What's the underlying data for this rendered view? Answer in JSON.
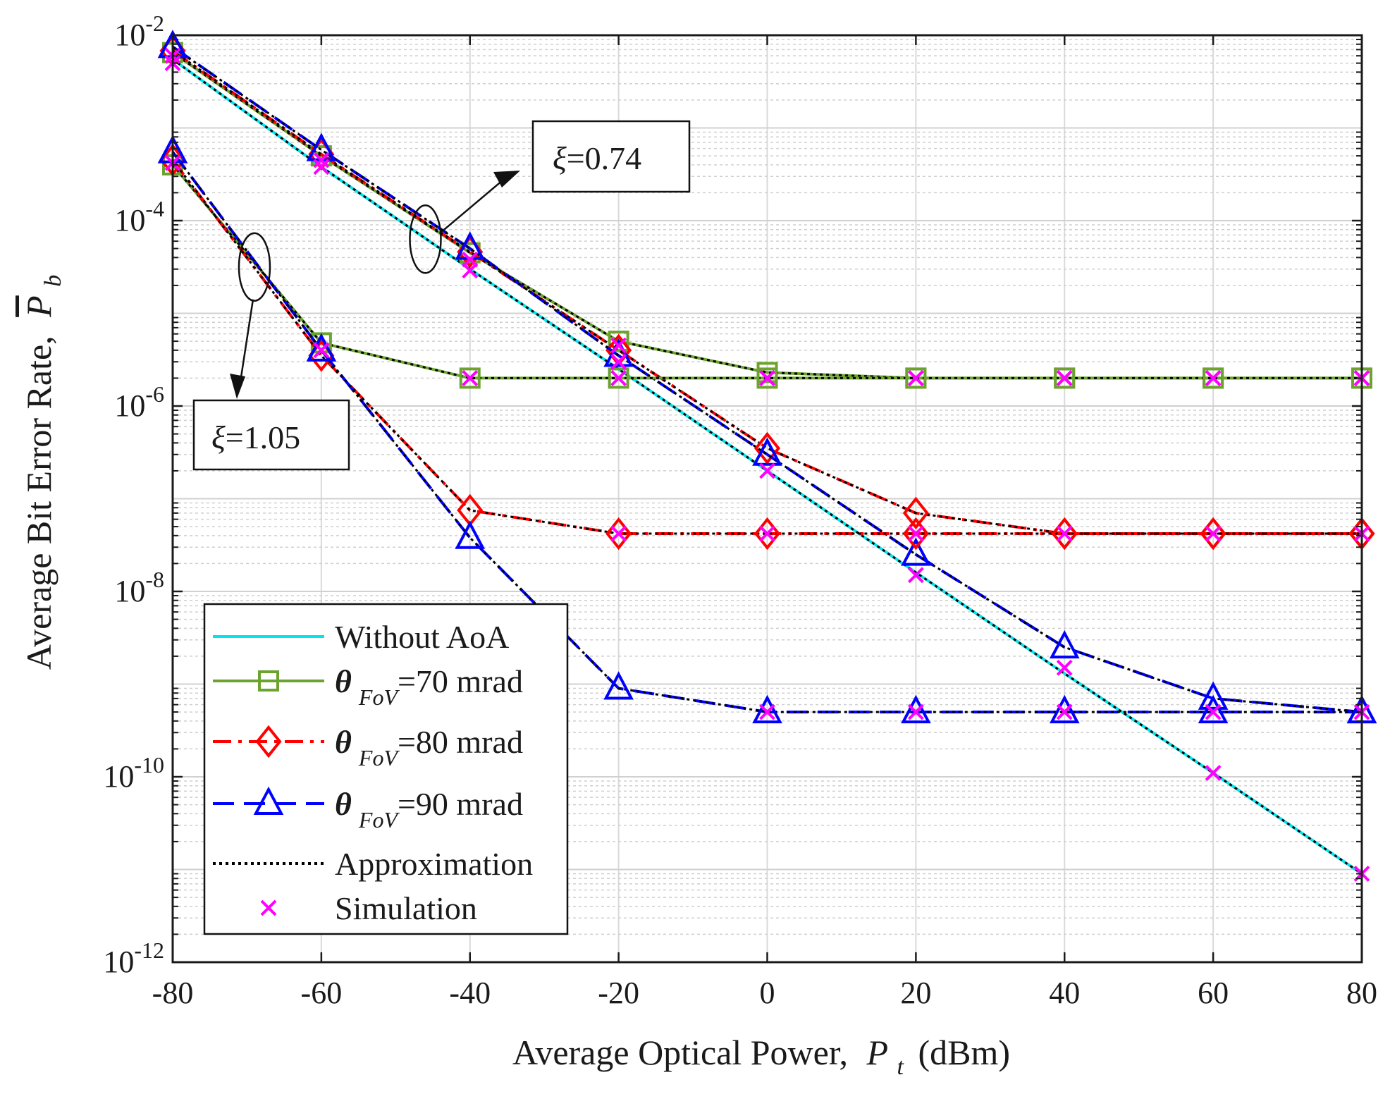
{
  "chart_data": {
    "type": "line",
    "yscale": "log",
    "xlabel": "Average Optical Power,",
    "xlabel_var": "P",
    "xlabel_sub": "t",
    "xlabel_unit": "(dBm)",
    "ylabel": "Average Bit Error Rate,",
    "ylabel_var": "P",
    "ylabel_sub": "b",
    "xlim": [
      -80,
      80
    ],
    "ylim_exp": [
      -12,
      -2
    ],
    "x_ticks": [
      "-80",
      "-60",
      "-40",
      "-20",
      "0",
      "20",
      "40",
      "60",
      "80"
    ],
    "y_tick_base": "10",
    "y_tick_exps": [
      "-12",
      "-10",
      "-8",
      "-6",
      "-4",
      "-2"
    ],
    "grid": true,
    "x": [
      -80,
      -60,
      -40,
      -20,
      0,
      20,
      40,
      60,
      80
    ],
    "colors": {
      "without_aoa": "#00e5ee",
      "fov70": "#6ba32e",
      "fov80": "#ff0000",
      "fov90": "#0000ff",
      "approximation": "#000000",
      "simulation": "#ff00ff"
    },
    "series": [
      {
        "name": "Without AoA",
        "group": "xi=0.74",
        "style": "solid",
        "color": "#00e5ee",
        "marker": "none",
        "values": [
          0.0055,
          0.00038,
          3e-05,
          2.5e-06,
          2e-07,
          1.6e-08,
          1.3e-09,
          1.1e-10,
          9e-12
        ]
      },
      {
        "name": "θ FoV=70 mrad",
        "group": "xi=0.74",
        "style": "solid",
        "color": "#6ba32e",
        "marker": "square",
        "values": [
          0.0065,
          0.0005,
          4.5e-05,
          5e-06,
          2.3e-06,
          2e-06,
          2e-06,
          2e-06,
          2e-06
        ]
      },
      {
        "name": "θ FoV=80 mrad",
        "group": "xi=0.74",
        "style": "dashdot",
        "color": "#ff0000",
        "marker": "diamond",
        "values": [
          0.0068,
          0.00052,
          4.6e-05,
          4e-06,
          3.5e-07,
          7e-08,
          4.2e-08,
          4.2e-08,
          4.2e-08
        ]
      },
      {
        "name": "θ FoV=90 mrad",
        "group": "xi=0.74",
        "style": "dashed",
        "color": "#0000ff",
        "marker": "triangle",
        "values": [
          0.0075,
          0.00058,
          5e-05,
          3.5e-06,
          3e-07,
          2.5e-08,
          2.5e-09,
          7e-10,
          5e-10
        ]
      },
      {
        "name": "θ FoV=70 mrad",
        "group": "xi=1.05",
        "style": "solid",
        "color": "#6ba32e",
        "marker": "square",
        "values": [
          0.0004,
          4.8e-06,
          2e-06,
          2e-06,
          2e-06,
          2e-06,
          2e-06,
          2e-06,
          2e-06
        ]
      },
      {
        "name": "θ FoV=80 mrad",
        "group": "xi=1.05",
        "style": "dashdot",
        "color": "#ff0000",
        "marker": "diamond",
        "values": [
          0.00045,
          3.5e-06,
          7.5e-08,
          4.2e-08,
          4.2e-08,
          4.2e-08,
          4.2e-08,
          4.2e-08,
          4.2e-08
        ]
      },
      {
        "name": "θ FoV=90 mrad",
        "group": "xi=1.05",
        "style": "dashed",
        "color": "#0000ff",
        "marker": "triangle",
        "values": [
          0.00055,
          4e-06,
          3.8e-08,
          9e-10,
          5e-10,
          5e-10,
          5e-10,
          5e-10,
          5e-10
        ]
      },
      {
        "name": "Simulation",
        "group": "xi=0.74",
        "style": "none",
        "color": "#ff00ff",
        "marker": "x",
        "values": [
          0.005,
          0.00038,
          2.9e-05,
          3e-06,
          2e-07,
          1.5e-08,
          1.5e-09,
          1.1e-10,
          9e-12
        ]
      },
      {
        "name": "Simulation",
        "group": "xi=0.74",
        "style": "none",
        "color": "#ff00ff",
        "marker": "x",
        "values": [
          0.006,
          0.00045,
          3.8e-05,
          4.5e-06,
          2e-06,
          2e-06,
          2e-06,
          2e-06,
          2e-06
        ]
      },
      {
        "name": "Simulation",
        "group": "xi=1.05",
        "style": "none",
        "color": "#ff00ff",
        "marker": "x",
        "values": [
          0.00042,
          4e-06,
          2e-06,
          2e-06,
          2e-06,
          2e-06,
          2e-06,
          2e-06,
          2e-06
        ]
      },
      {
        "name": "Simulation",
        "group": "xi=1.05",
        "style": "none",
        "color": "#ff00ff",
        "marker": "x",
        "values": [
          null,
          null,
          null,
          4.2e-08,
          4.2e-08,
          4.2e-08,
          4.2e-08,
          4.2e-08,
          4.2e-08
        ]
      },
      {
        "name": "Simulation",
        "group": "xi=1.05",
        "style": "none",
        "color": "#ff00ff",
        "marker": "x",
        "values": [
          null,
          null,
          null,
          null,
          5e-10,
          5e-10,
          5e-10,
          5e-10,
          5e-10
        ]
      }
    ],
    "legend": {
      "placement": "bottom-left",
      "entries": [
        {
          "label": "Without AoA",
          "theta": "",
          "sub": "",
          "rest": "",
          "color": "#00e5ee",
          "style": "solid",
          "marker": "none"
        },
        {
          "label": "",
          "theta": "θ",
          "sub": "FoV",
          "rest": "=70 mrad",
          "color": "#6ba32e",
          "style": "solid",
          "marker": "square"
        },
        {
          "label": "",
          "theta": "θ",
          "sub": "FoV",
          "rest": "=80 mrad",
          "color": "#ff0000",
          "style": "dashdot",
          "marker": "diamond"
        },
        {
          "label": "",
          "theta": "θ",
          "sub": "FoV",
          "rest": "=90 mrad",
          "color": "#0000ff",
          "style": "dashed",
          "marker": "triangle"
        },
        {
          "label": "Approximation",
          "theta": "",
          "sub": "",
          "rest": "",
          "color": "#000000",
          "style": "dotted",
          "marker": "none"
        },
        {
          "label": "Simulation",
          "theta": "",
          "sub": "",
          "rest": "",
          "color": "#ff00ff",
          "style": "none",
          "marker": "x"
        }
      ]
    },
    "annotations": [
      {
        "symbol": "ξ",
        "text": "=0.74",
        "target_x": -46,
        "target_exp": -4.2
      },
      {
        "symbol": "ξ",
        "text": "=1.05",
        "target_x": -69,
        "target_exp": -4.5
      }
    ]
  }
}
